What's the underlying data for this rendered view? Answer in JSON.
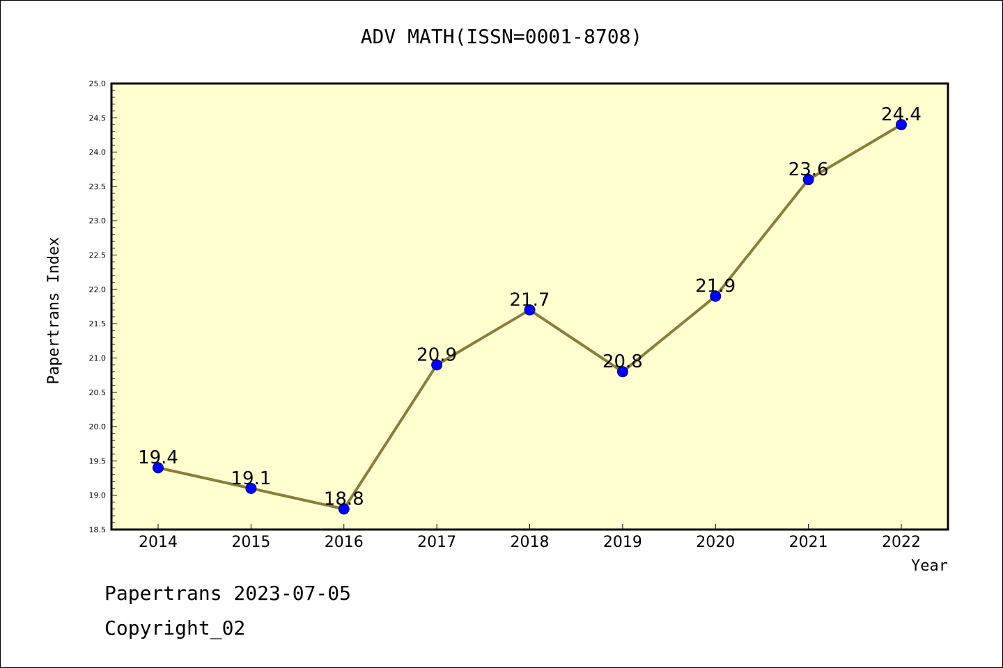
{
  "chart_data": {
    "type": "line",
    "title": "ADV MATH(ISSN=0001-8708)",
    "xlabel": "Year",
    "ylabel": "Papertrans Index",
    "categories": [
      "2014",
      "2015",
      "2016",
      "2017",
      "2018",
      "2019",
      "2020",
      "2021",
      "2022"
    ],
    "series": [
      {
        "values": [
          19.4,
          19.1,
          18.8,
          20.9,
          21.7,
          20.8,
          21.9,
          23.6,
          24.4
        ],
        "data_labels": [
          "19.4",
          "19.1",
          "18.8",
          "20.9",
          "21.7",
          "20.8",
          "21.9",
          "23.6",
          "24.4"
        ]
      }
    ],
    "ylim": [
      18.5,
      25.0
    ],
    "yticks": [
      "18.5",
      "19.0",
      "19.5",
      "20.0",
      "20.5",
      "21.0",
      "21.5",
      "22.0",
      "22.5",
      "23.0",
      "23.5",
      "24.0",
      "24.5",
      "25.0"
    ],
    "grid": false,
    "colors": {
      "plot_background": "#ffffd0",
      "line": "#8b7d3a",
      "marker": "#0000ff"
    }
  },
  "footer": {
    "line1": "Papertrans 2023-07-05",
    "line2": "Copyright_02"
  }
}
